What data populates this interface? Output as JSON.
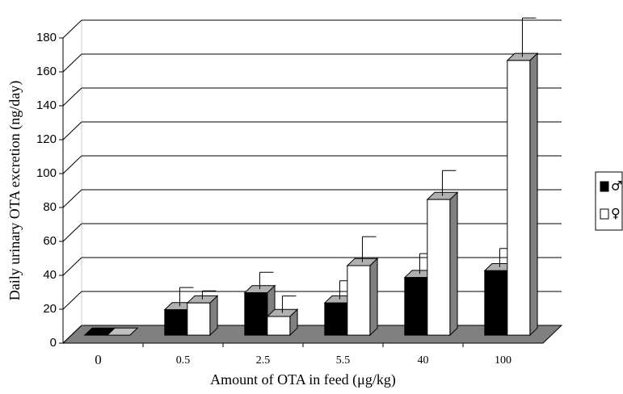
{
  "chart_data": {
    "type": "bar3d",
    "y_label": "Daily urinary OTA excretion (ng/day)",
    "x_label": "Amount of OTA in feed (μg/kg)",
    "categories": [
      "0",
      "0.5",
      "2.5",
      "5.5",
      "40",
      "100"
    ],
    "series": [
      {
        "name": "♂",
        "color": "#000000",
        "values": [
          0,
          15,
          25,
          19,
          34,
          38
        ],
        "errors": [
          0,
          11,
          10,
          11,
          12,
          11
        ]
      },
      {
        "name": "♀",
        "color": "#ffffff",
        "values": [
          0,
          19,
          11,
          41,
          80,
          162
        ],
        "errors": [
          0,
          5,
          10,
          15,
          15,
          23
        ]
      }
    ],
    "ylim": [
      0,
      180
    ],
    "yticks": [
      0,
      20,
      40,
      60,
      80,
      100,
      120,
      140,
      160,
      180
    ],
    "grid": true
  }
}
